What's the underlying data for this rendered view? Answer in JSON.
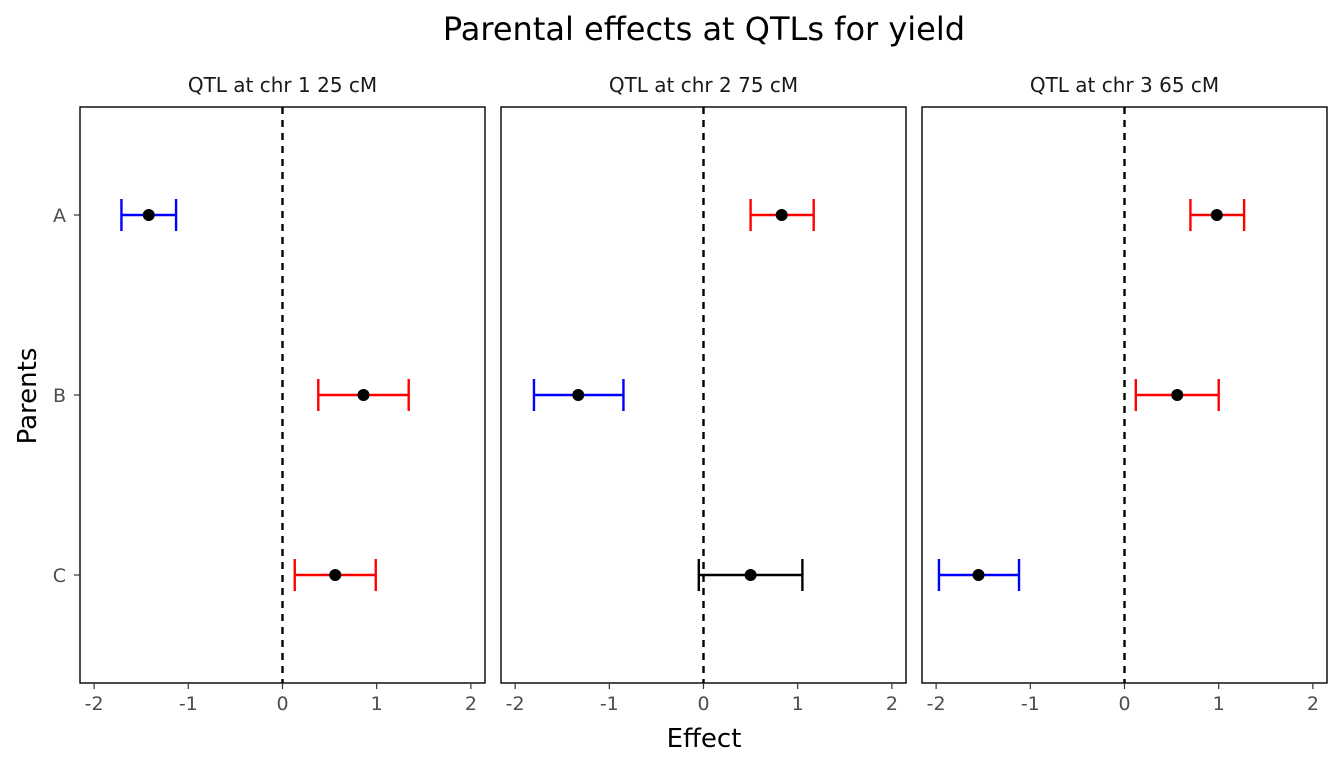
{
  "chart_data": {
    "type": "scatter",
    "title": "Parental effects at QTLs for yield",
    "xlabel": "Effect",
    "ylabel": "Parents",
    "xlim": [
      -2.15,
      2.15
    ],
    "x_ticks": [
      "-2",
      "-1",
      "0",
      "1",
      "2"
    ],
    "categories": [
      "A",
      "B",
      "C"
    ],
    "reference_line": {
      "x": 0,
      "style": "dashed",
      "color": "#000000"
    },
    "colors": {
      "negative": "#0000ff",
      "positive": "#ff0000",
      "neutral": "#000000",
      "point": "#000000"
    },
    "grid": false,
    "panels": [
      {
        "label": "QTL at chr 1 25 cM",
        "points": [
          {
            "parent": "A",
            "effect": -1.42,
            "lower": -1.71,
            "upper": -1.13,
            "color": "#0000ff"
          },
          {
            "parent": "B",
            "effect": 0.86,
            "lower": 0.38,
            "upper": 1.34,
            "color": "#ff0000"
          },
          {
            "parent": "C",
            "effect": 0.56,
            "lower": 0.13,
            "upper": 0.99,
            "color": "#ff0000"
          }
        ]
      },
      {
        "label": "QTL at chr 2 75 cM",
        "points": [
          {
            "parent": "A",
            "effect": 0.83,
            "lower": 0.5,
            "upper": 1.17,
            "color": "#ff0000"
          },
          {
            "parent": "B",
            "effect": -1.33,
            "lower": -1.8,
            "upper": -0.85,
            "color": "#0000ff"
          },
          {
            "parent": "C",
            "effect": 0.5,
            "lower": -0.05,
            "upper": 1.05,
            "color": "#000000"
          }
        ]
      },
      {
        "label": "QTL at chr 3 65 cM",
        "points": [
          {
            "parent": "A",
            "effect": 0.98,
            "lower": 0.7,
            "upper": 1.27,
            "color": "#ff0000"
          },
          {
            "parent": "B",
            "effect": 0.56,
            "lower": 0.12,
            "upper": 1.0,
            "color": "#ff0000"
          },
          {
            "parent": "C",
            "effect": -1.55,
            "lower": -1.97,
            "upper": -1.12,
            "color": "#0000ff"
          }
        ]
      }
    ]
  }
}
